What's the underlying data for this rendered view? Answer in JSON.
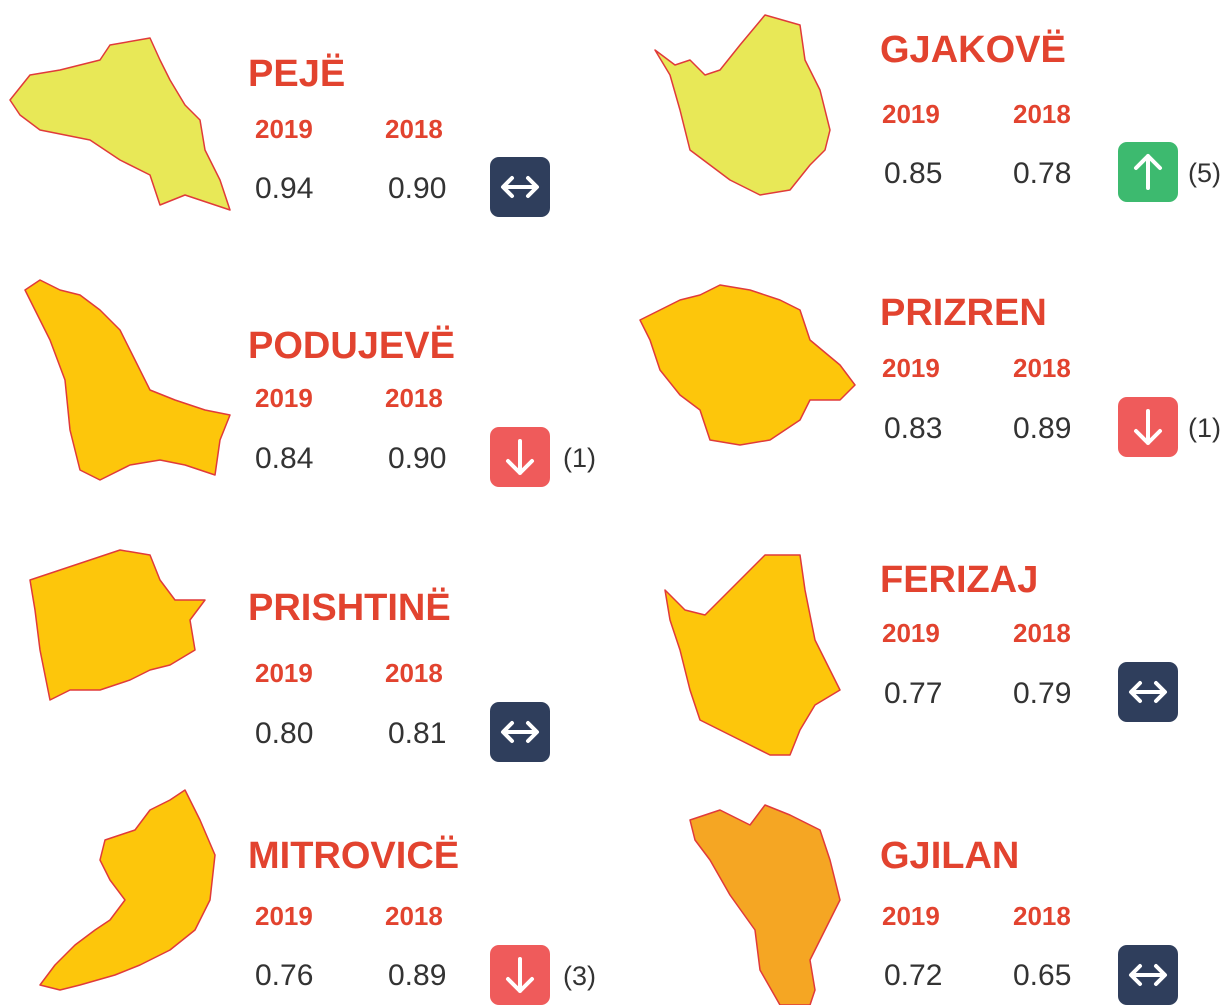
{
  "years": [
    "2019",
    "2018"
  ],
  "regions": [
    {
      "name": "PEJË",
      "v2019": "0.94",
      "v2018": "0.90",
      "trend": "same"
    },
    {
      "name": "GJAKOVË",
      "v2019": "0.85",
      "v2018": "0.78",
      "trend": "up",
      "change": "(5)"
    },
    {
      "name": "PODUJEVË",
      "v2019": "0.84",
      "v2018": "0.90",
      "trend": "down",
      "change": "(1)"
    },
    {
      "name": "PRIZREN",
      "v2019": "0.83",
      "v2018": "0.89",
      "trend": "down",
      "change": "(1)"
    },
    {
      "name": "PRISHTINË",
      "v2019": "0.80",
      "v2018": "0.81",
      "trend": "same"
    },
    {
      "name": "FERIZAJ",
      "v2019": "0.77",
      "v2018": "0.79",
      "trend": "same"
    },
    {
      "name": "MITROVICË",
      "v2019": "0.76",
      "v2018": "0.89",
      "trend": "down",
      "change": "(3)"
    },
    {
      "name": "GJILAN",
      "v2019": "0.72",
      "v2018": "0.65",
      "trend": "same"
    }
  ]
}
